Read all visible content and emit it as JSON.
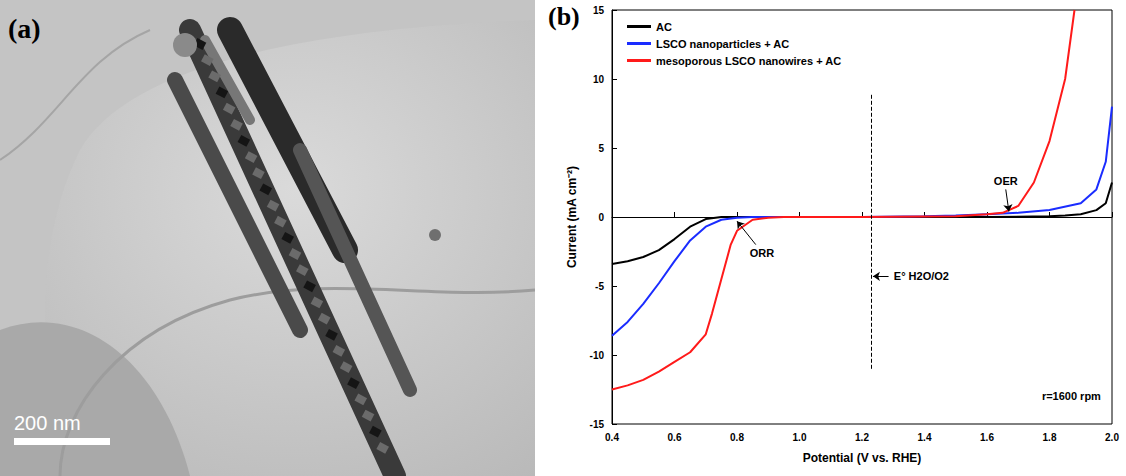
{
  "panel_a": {
    "letter": "(a)",
    "scale_bar": "200 nm"
  },
  "panel_b": {
    "letter": "(b)"
  },
  "chart_data": {
    "type": "line",
    "x_label": "Potential (V vs. RHE)",
    "y_label": "Current (mA cm⁻²)",
    "xlim": [
      0.4,
      2.0
    ],
    "xticks": [
      0.4,
      0.6,
      0.8,
      {
        "value": 1,
        "label": "1.0"
      },
      1.2,
      1.4,
      1.6,
      1.8,
      {
        "value": 2,
        "label": "2.0"
      }
    ],
    "ylim": [
      -15,
      15
    ],
    "yticks": [
      -15,
      -10,
      -5,
      0,
      5,
      10,
      15
    ],
    "grid": false,
    "legend": "upper left",
    "series": [
      {
        "name": "AC",
        "color": "#000000",
        "x": [
          0.4,
          0.45,
          0.5,
          0.55,
          0.6,
          0.65,
          0.7,
          0.75,
          0.8,
          1.0,
          1.2,
          1.4,
          1.6,
          1.8,
          1.85,
          1.9,
          1.95,
          1.98,
          2.0
        ],
        "values": [
          -3.4,
          -3.2,
          -2.9,
          -2.4,
          -1.6,
          -0.7,
          -0.15,
          0,
          0,
          0,
          0,
          0,
          0,
          0.05,
          0.1,
          0.2,
          0.5,
          1.0,
          2.5
        ]
      },
      {
        "name": "LSCO nanoparticles + AC",
        "color": "#1a2cff",
        "x": [
          0.4,
          0.45,
          0.5,
          0.55,
          0.6,
          0.65,
          0.7,
          0.75,
          0.8,
          0.85,
          1.0,
          1.2,
          1.4,
          1.5,
          1.6,
          1.7,
          1.8,
          1.9,
          1.95,
          1.98,
          2.0
        ],
        "values": [
          -8.6,
          -7.6,
          -6.3,
          -4.8,
          -3.2,
          -1.7,
          -0.7,
          -0.2,
          -0.05,
          0,
          0,
          0,
          0.05,
          0.1,
          0.2,
          0.3,
          0.5,
          1.0,
          2.0,
          4.0,
          8.0
        ]
      },
      {
        "name": "mesoporous LSCO nanowires + AC",
        "color": "#ff1a1a",
        "x": [
          0.4,
          0.45,
          0.5,
          0.55,
          0.6,
          0.65,
          0.7,
          0.72,
          0.75,
          0.78,
          0.8,
          0.85,
          0.9,
          0.95,
          1.2,
          1.5,
          1.6,
          1.65,
          1.7,
          1.75,
          1.8,
          1.85,
          1.88
        ],
        "values": [
          -12.5,
          -12.2,
          -11.8,
          -11.2,
          -10.5,
          -9.8,
          -8.5,
          -7,
          -4.5,
          -2,
          -1,
          -0.2,
          -0.05,
          0,
          0,
          0.05,
          0.2,
          0.3,
          0.8,
          2.5,
          5.5,
          10,
          15
        ]
      }
    ],
    "reference_line": {
      "x": 1.23,
      "y_span": [
        -11,
        9
      ],
      "label": "E° H2O/O2",
      "label_at": [
        1.39,
        -4.3
      ],
      "arrow": [
        [
          1.285,
          -4.3
        ],
        [
          1.235,
          -4.3
        ]
      ]
    },
    "annotations": [
      {
        "text": "ORR",
        "x": 0.88,
        "y": -2.6,
        "arrow": [
          [
            0.86,
            -2.0
          ],
          [
            0.8,
            -0.3
          ]
        ]
      },
      {
        "text": "OER",
        "x": 1.66,
        "y": 2.6,
        "arrow": [
          [
            1.66,
            2.0
          ],
          [
            1.67,
            0.4
          ]
        ]
      },
      {
        "text": "r=1600 rpm",
        "x": 1.87,
        "y": -13
      }
    ]
  }
}
